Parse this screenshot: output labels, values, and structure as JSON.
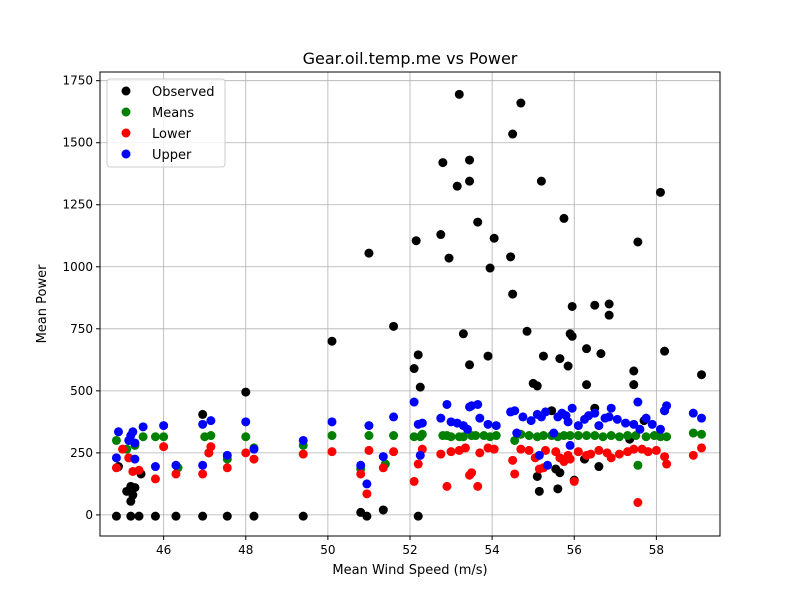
{
  "chart_data": {
    "type": "scatter",
    "title": "Gear.oil.temp.me vs Power",
    "xlabel": "Mean Wind Speed (m/s)",
    "ylabel": "Mean Power",
    "xlim": [
      44.45,
      59.55
    ],
    "ylim": [
      -85,
      1785
    ],
    "xticks": [
      46,
      48,
      50,
      52,
      54,
      56,
      58
    ],
    "yticks": [
      0,
      250,
      500,
      750,
      1000,
      1250,
      1500,
      1750
    ],
    "grid": true,
    "legend_position": "top-left",
    "series": [
      {
        "name": "Observed",
        "color": "#000000",
        "points": [
          [
            44.85,
            -5
          ],
          [
            44.9,
            195
          ],
          [
            45.1,
            95
          ],
          [
            45.2,
            115
          ],
          [
            45.25,
            80
          ],
          [
            45.2,
            55
          ],
          [
            45.3,
            110
          ],
          [
            45.45,
            165
          ],
          [
            45.4,
            -5
          ],
          [
            45.2,
            -5
          ],
          [
            45.8,
            -5
          ],
          [
            46.3,
            -5
          ],
          [
            46.95,
            -5
          ],
          [
            47.55,
            -5
          ],
          [
            48.2,
            -5
          ],
          [
            49.4,
            -5
          ],
          [
            46.95,
            405
          ],
          [
            47.1,
            250
          ],
          [
            48.0,
            495
          ],
          [
            50.1,
            700
          ],
          [
            50.8,
            10
          ],
          [
            50.95,
            -5
          ],
          [
            51.0,
            1055
          ],
          [
            51.35,
            20
          ],
          [
            51.6,
            760
          ],
          [
            52.1,
            590
          ],
          [
            52.2,
            645
          ],
          [
            52.25,
            515
          ],
          [
            52.15,
            1105
          ],
          [
            52.2,
            -5
          ],
          [
            52.75,
            1130
          ],
          [
            52.8,
            1420
          ],
          [
            52.95,
            1035
          ],
          [
            53.15,
            1325
          ],
          [
            53.2,
            1695
          ],
          [
            53.3,
            730
          ],
          [
            53.45,
            1345
          ],
          [
            53.45,
            1430
          ],
          [
            53.45,
            605
          ],
          [
            53.65,
            1180
          ],
          [
            53.9,
            640
          ],
          [
            53.95,
            995
          ],
          [
            54.05,
            1115
          ],
          [
            54.45,
            1040
          ],
          [
            54.5,
            890
          ],
          [
            54.5,
            1535
          ],
          [
            54.7,
            1660
          ],
          [
            54.85,
            740
          ],
          [
            55.0,
            530
          ],
          [
            55.1,
            520
          ],
          [
            55.2,
            1345
          ],
          [
            55.25,
            640
          ],
          [
            55.15,
            95
          ],
          [
            55.1,
            155
          ],
          [
            55.45,
            420
          ],
          [
            55.55,
            185
          ],
          [
            55.65,
            170
          ],
          [
            55.6,
            105
          ],
          [
            55.65,
            630
          ],
          [
            55.75,
            1195
          ],
          [
            55.85,
            600
          ],
          [
            55.9,
            730
          ],
          [
            55.95,
            840
          ],
          [
            55.95,
            720
          ],
          [
            56.0,
            140
          ],
          [
            56.25,
            225
          ],
          [
            56.3,
            670
          ],
          [
            56.3,
            525
          ],
          [
            56.5,
            845
          ],
          [
            56.5,
            430
          ],
          [
            56.6,
            195
          ],
          [
            56.65,
            650
          ],
          [
            56.85,
            850
          ],
          [
            56.85,
            805
          ],
          [
            57.35,
            305
          ],
          [
            57.45,
            580
          ],
          [
            57.45,
            525
          ],
          [
            57.55,
            1100
          ],
          [
            57.7,
            380
          ],
          [
            58.1,
            1300
          ],
          [
            58.2,
            660
          ],
          [
            58.2,
            420
          ],
          [
            59.1,
            565
          ]
        ]
      },
      {
        "name": "Means",
        "color": "#008000",
        "points": [
          [
            44.85,
            300
          ],
          [
            45.1,
            265
          ],
          [
            45.3,
            280
          ],
          [
            45.5,
            315
          ],
          [
            45.8,
            315
          ],
          [
            46.0,
            315
          ],
          [
            46.35,
            190
          ],
          [
            47.0,
            315
          ],
          [
            47.15,
            320
          ],
          [
            47.55,
            225
          ],
          [
            48.0,
            315
          ],
          [
            48.2,
            270
          ],
          [
            49.4,
            280
          ],
          [
            50.1,
            320
          ],
          [
            50.8,
            185
          ],
          [
            51.0,
            320
          ],
          [
            51.4,
            205
          ],
          [
            51.6,
            320
          ],
          [
            52.1,
            315
          ],
          [
            52.25,
            315
          ],
          [
            52.3,
            325
          ],
          [
            52.8,
            320
          ],
          [
            52.9,
            320
          ],
          [
            53.0,
            315
          ],
          [
            53.2,
            315
          ],
          [
            53.3,
            315
          ],
          [
            53.5,
            320
          ],
          [
            53.6,
            320
          ],
          [
            53.8,
            320
          ],
          [
            53.95,
            315
          ],
          [
            54.1,
            320
          ],
          [
            54.55,
            300
          ],
          [
            54.7,
            325
          ],
          [
            54.9,
            320
          ],
          [
            55.1,
            315
          ],
          [
            55.25,
            320
          ],
          [
            55.45,
            320
          ],
          [
            55.6,
            315
          ],
          [
            55.75,
            320
          ],
          [
            55.9,
            320
          ],
          [
            56.1,
            320
          ],
          [
            56.3,
            320
          ],
          [
            56.5,
            320
          ],
          [
            56.7,
            315
          ],
          [
            56.9,
            320
          ],
          [
            57.1,
            315
          ],
          [
            57.3,
            320
          ],
          [
            57.5,
            320
          ],
          [
            57.55,
            200
          ],
          [
            57.75,
            315
          ],
          [
            57.95,
            320
          ],
          [
            58.1,
            315
          ],
          [
            58.25,
            315
          ],
          [
            58.9,
            330
          ],
          [
            59.1,
            325
          ]
        ]
      },
      {
        "name": "Lower",
        "color": "#ff0000",
        "points": [
          [
            44.85,
            190
          ],
          [
            45.0,
            265
          ],
          [
            45.15,
            230
          ],
          [
            45.25,
            175
          ],
          [
            45.4,
            180
          ],
          [
            45.8,
            145
          ],
          [
            46.0,
            275
          ],
          [
            46.3,
            165
          ],
          [
            46.95,
            165
          ],
          [
            47.1,
            250
          ],
          [
            47.15,
            275
          ],
          [
            47.55,
            190
          ],
          [
            48.0,
            250
          ],
          [
            48.2,
            225
          ],
          [
            49.4,
            245
          ],
          [
            50.1,
            255
          ],
          [
            50.8,
            165
          ],
          [
            50.95,
            85
          ],
          [
            51.0,
            260
          ],
          [
            51.35,
            190
          ],
          [
            51.6,
            255
          ],
          [
            52.1,
            135
          ],
          [
            52.2,
            205
          ],
          [
            52.3,
            265
          ],
          [
            52.75,
            245
          ],
          [
            52.9,
            115
          ],
          [
            53.0,
            255
          ],
          [
            53.2,
            260
          ],
          [
            53.35,
            270
          ],
          [
            53.45,
            160
          ],
          [
            53.5,
            170
          ],
          [
            53.65,
            115
          ],
          [
            53.7,
            250
          ],
          [
            53.9,
            270
          ],
          [
            54.05,
            265
          ],
          [
            54.5,
            220
          ],
          [
            54.55,
            165
          ],
          [
            54.7,
            265
          ],
          [
            54.9,
            260
          ],
          [
            55.05,
            230
          ],
          [
            55.15,
            185
          ],
          [
            55.25,
            190
          ],
          [
            55.3,
            260
          ],
          [
            55.55,
            255
          ],
          [
            55.65,
            230
          ],
          [
            55.75,
            215
          ],
          [
            55.85,
            240
          ],
          [
            55.9,
            225
          ],
          [
            56.0,
            135
          ],
          [
            56.1,
            255
          ],
          [
            56.3,
            240
          ],
          [
            56.4,
            245
          ],
          [
            56.6,
            260
          ],
          [
            56.8,
            250
          ],
          [
            56.9,
            230
          ],
          [
            57.1,
            245
          ],
          [
            57.3,
            255
          ],
          [
            57.45,
            265
          ],
          [
            57.55,
            50
          ],
          [
            57.65,
            265
          ],
          [
            57.8,
            255
          ],
          [
            58.0,
            260
          ],
          [
            58.2,
            235
          ],
          [
            58.25,
            205
          ],
          [
            58.9,
            240
          ],
          [
            59.1,
            270
          ]
        ]
      },
      {
        "name": "Upper",
        "color": "#0000ff",
        "points": [
          [
            44.85,
            230
          ],
          [
            44.9,
            335
          ],
          [
            45.15,
            300
          ],
          [
            45.2,
            320
          ],
          [
            45.25,
            335
          ],
          [
            45.3,
            225
          ],
          [
            45.3,
            290
          ],
          [
            45.5,
            355
          ],
          [
            45.8,
            195
          ],
          [
            46.0,
            360
          ],
          [
            46.3,
            200
          ],
          [
            46.95,
            200
          ],
          [
            46.95,
            365
          ],
          [
            47.15,
            380
          ],
          [
            47.55,
            240
          ],
          [
            48.0,
            375
          ],
          [
            48.2,
            265
          ],
          [
            49.4,
            300
          ],
          [
            50.1,
            375
          ],
          [
            50.8,
            200
          ],
          [
            50.95,
            125
          ],
          [
            51.0,
            360
          ],
          [
            51.35,
            235
          ],
          [
            51.6,
            395
          ],
          [
            52.1,
            455
          ],
          [
            52.2,
            365
          ],
          [
            52.25,
            240
          ],
          [
            52.3,
            370
          ],
          [
            52.75,
            390
          ],
          [
            52.9,
            445
          ],
          [
            53.0,
            375
          ],
          [
            53.15,
            370
          ],
          [
            53.3,
            360
          ],
          [
            53.4,
            345
          ],
          [
            53.45,
            435
          ],
          [
            53.5,
            440
          ],
          [
            53.65,
            445
          ],
          [
            53.7,
            390
          ],
          [
            53.9,
            365
          ],
          [
            54.1,
            360
          ],
          [
            54.45,
            415
          ],
          [
            54.55,
            420
          ],
          [
            54.6,
            330
          ],
          [
            54.75,
            395
          ],
          [
            54.95,
            380
          ],
          [
            55.1,
            405
          ],
          [
            55.15,
            240
          ],
          [
            55.2,
            395
          ],
          [
            55.3,
            415
          ],
          [
            55.35,
            200
          ],
          [
            55.5,
            330
          ],
          [
            55.6,
            395
          ],
          [
            55.7,
            410
          ],
          [
            55.8,
            400
          ],
          [
            55.85,
            375
          ],
          [
            55.9,
            280
          ],
          [
            55.95,
            430
          ],
          [
            56.1,
            360
          ],
          [
            56.25,
            385
          ],
          [
            56.35,
            400
          ],
          [
            56.5,
            410
          ],
          [
            56.6,
            360
          ],
          [
            56.75,
            390
          ],
          [
            56.85,
            395
          ],
          [
            56.9,
            430
          ],
          [
            57.05,
            385
          ],
          [
            57.25,
            370
          ],
          [
            57.45,
            365
          ],
          [
            57.55,
            455
          ],
          [
            57.6,
            345
          ],
          [
            57.75,
            390
          ],
          [
            57.9,
            365
          ],
          [
            58.1,
            345
          ],
          [
            58.2,
            420
          ],
          [
            58.25,
            440
          ],
          [
            58.9,
            410
          ],
          [
            59.1,
            390
          ]
        ]
      }
    ]
  }
}
